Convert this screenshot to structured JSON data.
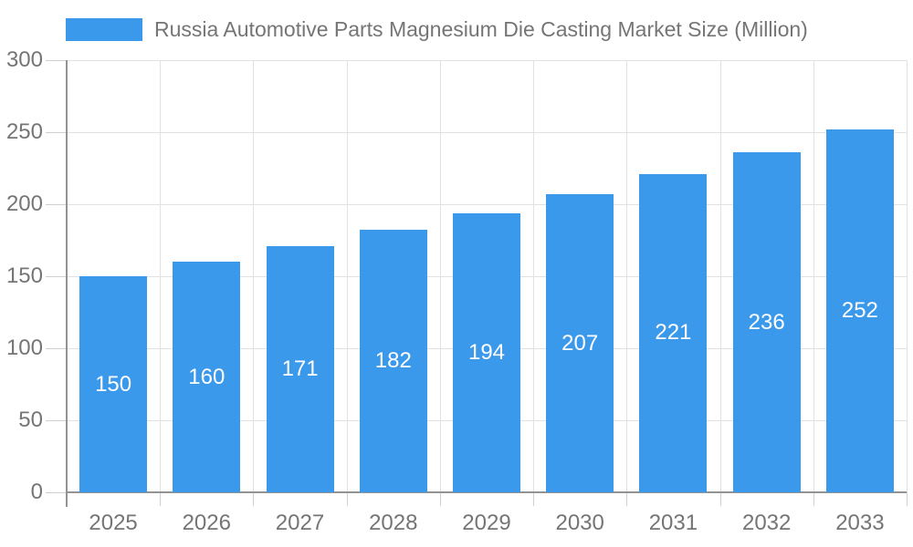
{
  "chart_data": {
    "type": "bar",
    "title": "Russia Automotive Parts Magnesium Die Casting Market Size (Million)",
    "legend": {
      "position": "top",
      "entries": [
        "Russia Automotive Parts Magnesium Die Casting Market Size (Million)"
      ]
    },
    "categories": [
      "2025",
      "2026",
      "2027",
      "2028",
      "2029",
      "2030",
      "2031",
      "2032",
      "2033"
    ],
    "series": [
      {
        "name": "Russia Automotive Parts Magnesium Die Casting Market Size (Million)",
        "values": [
          150,
          160,
          171,
          182,
          194,
          207,
          221,
          236,
          252
        ]
      }
    ],
    "value_labels_shown": true,
    "xlabel": "",
    "ylabel": "",
    "ylim": [
      0,
      300
    ],
    "yticks": [
      0,
      50,
      100,
      150,
      200,
      250,
      300
    ],
    "grid": true,
    "colors": {
      "bar": "#3B99EC",
      "value_label": "#FFFFFF",
      "axis_label": "#757575",
      "grid_line": "#E2E2E2",
      "tick_line": "#CFCFCF",
      "axis_line": "#939393",
      "background": "#FFFFFF"
    }
  }
}
